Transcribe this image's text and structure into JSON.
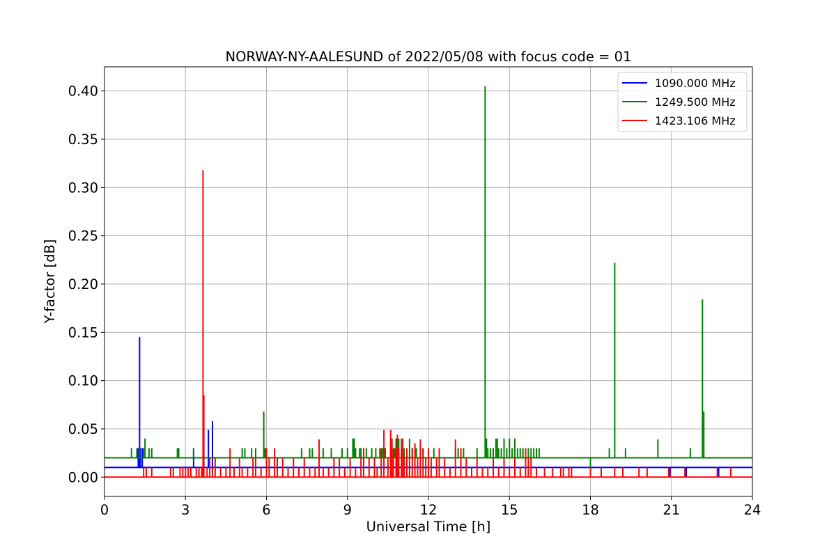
{
  "chart_data": {
    "type": "line",
    "title": "NORWAY-NY-AALESUND of 2022/05/08 with focus code = 01",
    "xlabel": "Universal Time [h]",
    "ylabel": "Y-factor [dB]",
    "xlim": [
      0,
      24
    ],
    "ylim": [
      -0.02,
      0.425
    ],
    "xticks": [
      0,
      3,
      6,
      9,
      12,
      15,
      18,
      21,
      24
    ],
    "yticks": [
      0.0,
      0.05,
      0.1,
      0.15,
      0.2,
      0.25,
      0.3,
      0.35,
      0.4
    ],
    "ytick_labels": [
      "0.00",
      "0.05",
      "0.10",
      "0.15",
      "0.20",
      "0.25",
      "0.30",
      "0.35",
      "0.40"
    ],
    "grid": true,
    "legend_position": "top-right",
    "series": [
      {
        "name": "1090.000 MHz",
        "color": "#0000ff",
        "baseline": 0.01,
        "spikes": [
          [
            1.25,
            0.03
          ],
          [
            1.3,
            0.145
          ],
          [
            1.33,
            0.03
          ],
          [
            1.4,
            0.03
          ],
          [
            3.3,
            0.03
          ],
          [
            3.85,
            0.049
          ],
          [
            4.0,
            0.058
          ],
          [
            21.55,
            0.0
          ],
          [
            22.75,
            0.0
          ],
          [
            20.95,
            0.0
          ]
        ]
      },
      {
        "name": "1249.500 MHz",
        "color": "#008000",
        "baseline": 0.02,
        "spikes": [
          [
            1.0,
            0.03
          ],
          [
            1.2,
            0.03
          ],
          [
            1.3,
            0.03
          ],
          [
            1.45,
            0.03
          ],
          [
            1.5,
            0.04
          ],
          [
            1.65,
            0.03
          ],
          [
            1.75,
            0.03
          ],
          [
            2.7,
            0.03
          ],
          [
            2.75,
            0.03
          ],
          [
            3.3,
            0.03
          ],
          [
            5.1,
            0.03
          ],
          [
            5.2,
            0.03
          ],
          [
            5.45,
            0.03
          ],
          [
            5.6,
            0.03
          ],
          [
            5.9,
            0.068
          ],
          [
            5.95,
            0.03
          ],
          [
            7.3,
            0.03
          ],
          [
            7.6,
            0.03
          ],
          [
            7.7,
            0.03
          ],
          [
            8.1,
            0.03
          ],
          [
            8.4,
            0.03
          ],
          [
            8.8,
            0.03
          ],
          [
            9.0,
            0.03
          ],
          [
            9.2,
            0.04
          ],
          [
            9.25,
            0.04
          ],
          [
            9.3,
            0.03
          ],
          [
            9.45,
            0.03
          ],
          [
            9.5,
            0.03
          ],
          [
            9.6,
            0.03
          ],
          [
            9.7,
            0.03
          ],
          [
            9.9,
            0.03
          ],
          [
            10.05,
            0.03
          ],
          [
            10.2,
            0.03
          ],
          [
            10.3,
            0.03
          ],
          [
            10.4,
            0.03
          ],
          [
            10.6,
            0.03
          ],
          [
            10.75,
            0.03
          ],
          [
            10.8,
            0.04
          ],
          [
            10.9,
            0.04
          ],
          [
            11.0,
            0.04
          ],
          [
            11.1,
            0.03
          ],
          [
            11.2,
            0.03
          ],
          [
            11.3,
            0.04
          ],
          [
            11.4,
            0.03
          ],
          [
            11.55,
            0.03
          ],
          [
            11.7,
            0.03
          ],
          [
            11.8,
            0.03
          ],
          [
            12.0,
            0.03
          ],
          [
            12.2,
            0.03
          ],
          [
            12.4,
            0.03
          ],
          [
            13.0,
            0.03
          ],
          [
            13.1,
            0.03
          ],
          [
            13.3,
            0.03
          ],
          [
            13.8,
            0.03
          ],
          [
            14.1,
            0.405
          ],
          [
            14.15,
            0.04
          ],
          [
            14.2,
            0.03
          ],
          [
            14.3,
            0.03
          ],
          [
            14.4,
            0.03
          ],
          [
            14.5,
            0.04
          ],
          [
            14.55,
            0.04
          ],
          [
            14.6,
            0.03
          ],
          [
            14.7,
            0.03
          ],
          [
            14.8,
            0.04
          ],
          [
            14.9,
            0.03
          ],
          [
            15.0,
            0.04
          ],
          [
            15.1,
            0.03
          ],
          [
            15.2,
            0.04
          ],
          [
            15.3,
            0.03
          ],
          [
            15.4,
            0.03
          ],
          [
            15.5,
            0.03
          ],
          [
            15.7,
            0.03
          ],
          [
            15.8,
            0.03
          ],
          [
            15.9,
            0.03
          ],
          [
            16.0,
            0.03
          ],
          [
            16.1,
            0.03
          ],
          [
            18.7,
            0.03
          ],
          [
            18.9,
            0.222
          ],
          [
            19.3,
            0.03
          ],
          [
            20.5,
            0.039
          ],
          [
            21.7,
            0.03
          ],
          [
            22.15,
            0.184
          ],
          [
            22.2,
            0.068
          ],
          [
            18.0,
            0.01
          ]
        ]
      },
      {
        "name": "1423.106 MHz",
        "color": "#ff0000",
        "baseline": 0.0,
        "spikes": [
          [
            1.45,
            0.01
          ],
          [
            1.55,
            0.01
          ],
          [
            1.75,
            0.01
          ],
          [
            2.45,
            0.01
          ],
          [
            2.55,
            0.01
          ],
          [
            2.8,
            0.01
          ],
          [
            2.9,
            0.01
          ],
          [
            3.0,
            0.01
          ],
          [
            3.1,
            0.01
          ],
          [
            3.2,
            0.01
          ],
          [
            3.4,
            0.01
          ],
          [
            3.5,
            0.01
          ],
          [
            3.6,
            0.01
          ],
          [
            3.65,
            0.318
          ],
          [
            3.68,
            0.085
          ],
          [
            3.8,
            0.01
          ],
          [
            3.9,
            0.02
          ],
          [
            4.0,
            0.01
          ],
          [
            4.1,
            0.02
          ],
          [
            4.3,
            0.01
          ],
          [
            4.5,
            0.01
          ],
          [
            4.65,
            0.03
          ],
          [
            4.8,
            0.01
          ],
          [
            5.0,
            0.02
          ],
          [
            5.1,
            0.01
          ],
          [
            5.3,
            0.01
          ],
          [
            5.5,
            0.02
          ],
          [
            5.6,
            0.02
          ],
          [
            5.8,
            0.01
          ],
          [
            6.0,
            0.03
          ],
          [
            6.1,
            0.02
          ],
          [
            6.3,
            0.03
          ],
          [
            6.4,
            0.02
          ],
          [
            6.6,
            0.02
          ],
          [
            6.8,
            0.01
          ],
          [
            7.0,
            0.02
          ],
          [
            7.2,
            0.01
          ],
          [
            7.4,
            0.02
          ],
          [
            7.6,
            0.01
          ],
          [
            7.8,
            0.01
          ],
          [
            7.95,
            0.039
          ],
          [
            8.1,
            0.01
          ],
          [
            8.3,
            0.01
          ],
          [
            8.5,
            0.02
          ],
          [
            8.7,
            0.02
          ],
          [
            8.9,
            0.01
          ],
          [
            9.1,
            0.02
          ],
          [
            9.3,
            0.01
          ],
          [
            9.5,
            0.02
          ],
          [
            9.6,
            0.03
          ],
          [
            9.8,
            0.02
          ],
          [
            10.0,
            0.02
          ],
          [
            10.1,
            0.01
          ],
          [
            10.25,
            0.03
          ],
          [
            10.35,
            0.049
          ],
          [
            10.5,
            0.02
          ],
          [
            10.6,
            0.049
          ],
          [
            10.65,
            0.04
          ],
          [
            10.7,
            0.03
          ],
          [
            10.8,
            0.03
          ],
          [
            10.85,
            0.044
          ],
          [
            10.9,
            0.03
          ],
          [
            11.0,
            0.03
          ],
          [
            11.05,
            0.04
          ],
          [
            11.1,
            0.02
          ],
          [
            11.2,
            0.03
          ],
          [
            11.3,
            0.02
          ],
          [
            11.4,
            0.03
          ],
          [
            11.5,
            0.035
          ],
          [
            11.6,
            0.02
          ],
          [
            11.7,
            0.039
          ],
          [
            11.8,
            0.03
          ],
          [
            11.9,
            0.02
          ],
          [
            12.0,
            0.03
          ],
          [
            12.1,
            0.02
          ],
          [
            12.3,
            0.02
          ],
          [
            12.4,
            0.03
          ],
          [
            12.6,
            0.02
          ],
          [
            12.8,
            0.01
          ],
          [
            13.0,
            0.039
          ],
          [
            13.2,
            0.03
          ],
          [
            13.4,
            0.02
          ],
          [
            13.6,
            0.01
          ],
          [
            13.8,
            0.02
          ],
          [
            14.0,
            0.01
          ],
          [
            14.2,
            0.01
          ],
          [
            14.4,
            0.02
          ],
          [
            14.6,
            0.01
          ],
          [
            14.8,
            0.02
          ],
          [
            15.0,
            0.01
          ],
          [
            15.2,
            0.02
          ],
          [
            15.4,
            0.01
          ],
          [
            15.6,
            0.03
          ],
          [
            15.7,
            0.02
          ],
          [
            15.8,
            0.02
          ],
          [
            16.0,
            0.01
          ],
          [
            16.3,
            0.01
          ],
          [
            16.6,
            0.01
          ],
          [
            16.9,
            0.01
          ],
          [
            17.0,
            0.01
          ],
          [
            17.2,
            0.01
          ],
          [
            17.3,
            0.01
          ],
          [
            18.0,
            0.01
          ],
          [
            18.4,
            0.01
          ],
          [
            18.9,
            0.01
          ],
          [
            19.2,
            0.01
          ],
          [
            19.8,
            0.01
          ],
          [
            20.1,
            0.01
          ],
          [
            20.9,
            0.01
          ],
          [
            21.5,
            0.01
          ],
          [
            22.7,
            0.01
          ],
          [
            23.2,
            0.01
          ]
        ]
      }
    ]
  }
}
